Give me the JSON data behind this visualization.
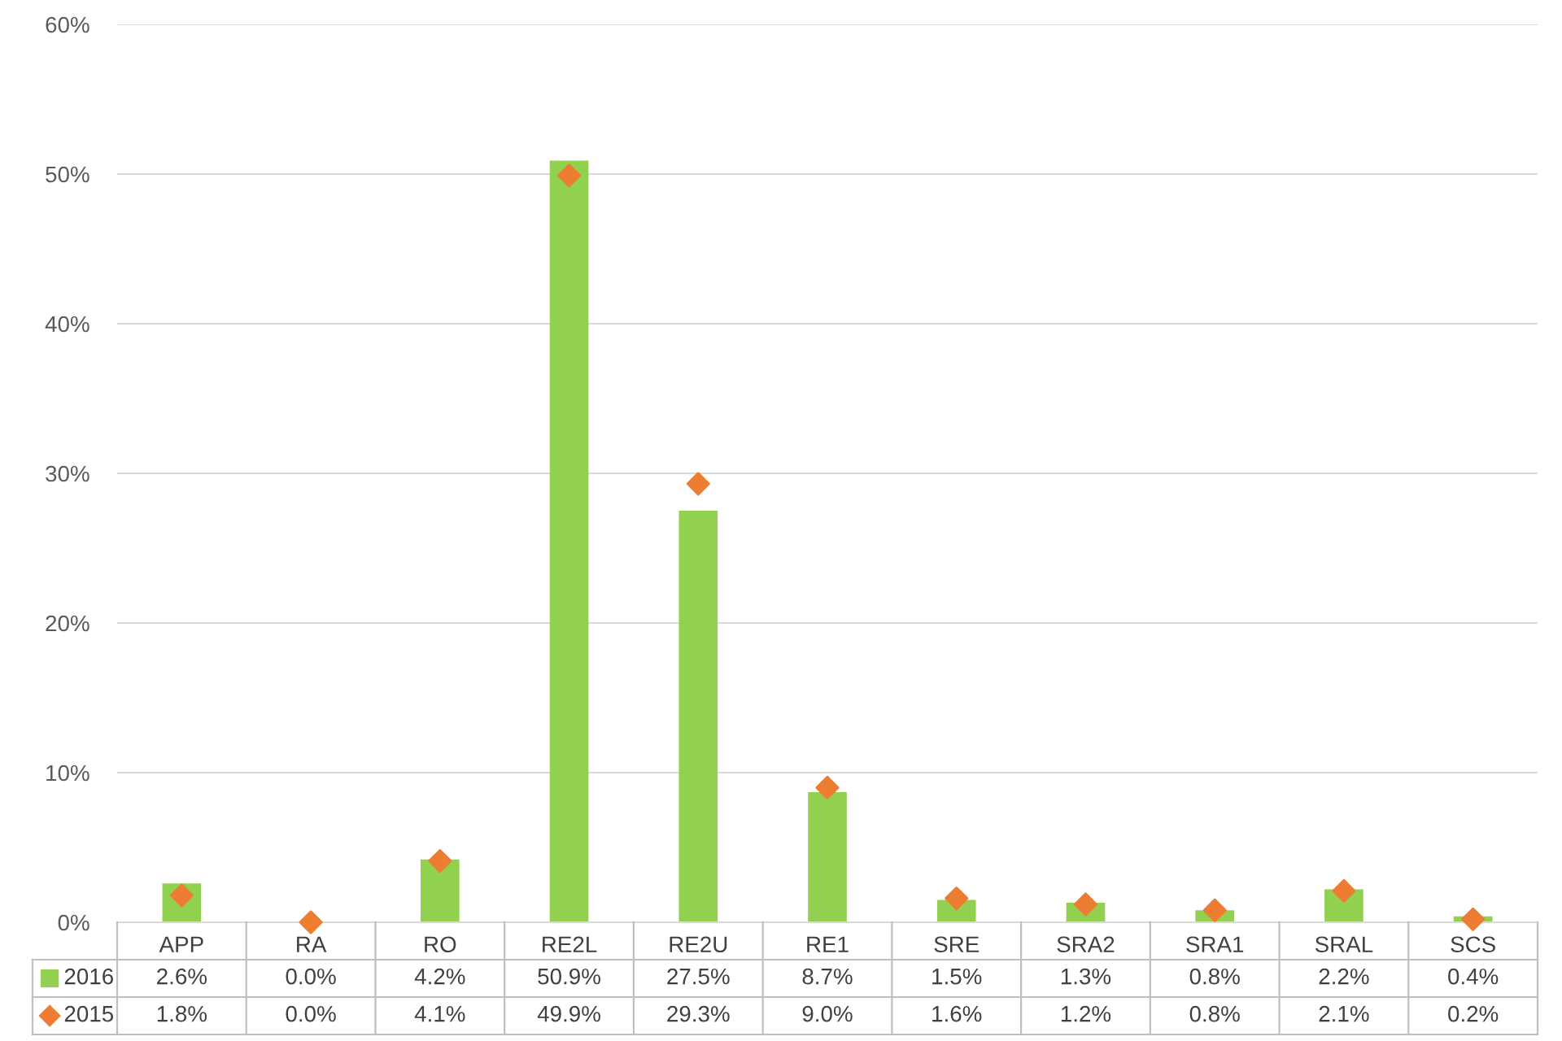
{
  "chart_data": {
    "type": "bar",
    "categories": [
      "APP",
      "RA",
      "RO",
      "RE2L",
      "RE2U",
      "RE1",
      "SRE",
      "SRA2",
      "SRA1",
      "SRAL",
      "SCS"
    ],
    "series": [
      {
        "name": "2016",
        "color": "#92d050",
        "values": [
          2.6,
          0.0,
          4.2,
          50.9,
          27.5,
          8.7,
          1.5,
          1.3,
          0.8,
          2.2,
          0.4
        ],
        "value_labels": [
          "2.6%",
          "0.0%",
          "4.2%",
          "50.9%",
          "27.5%",
          "8.7%",
          "1.5%",
          "1.3%",
          "0.8%",
          "2.2%",
          "0.4%"
        ]
      },
      {
        "name": "2015",
        "type": "scatter",
        "marker": "diamond",
        "color": "#ed7d31",
        "values": [
          1.8,
          0.0,
          4.1,
          49.9,
          29.3,
          9.0,
          1.6,
          1.2,
          0.8,
          2.1,
          0.2
        ],
        "value_labels": [
          "1.8%",
          "0.0%",
          "4.1%",
          "49.9%",
          "29.3%",
          "9.0%",
          "1.6%",
          "1.2%",
          "0.8%",
          "2.1%",
          "0.2%"
        ]
      }
    ],
    "ylim": [
      0,
      60
    ],
    "yticks": [
      {
        "value": 0,
        "label": "0%"
      },
      {
        "value": 10,
        "label": "10%"
      },
      {
        "value": 20,
        "label": "20%"
      },
      {
        "value": 30,
        "label": "30%"
      },
      {
        "value": 40,
        "label": "40%"
      },
      {
        "value": 50,
        "label": "50%"
      },
      {
        "value": 60,
        "label": "60%"
      }
    ],
    "grid": "y",
    "legend": "bottom left"
  }
}
